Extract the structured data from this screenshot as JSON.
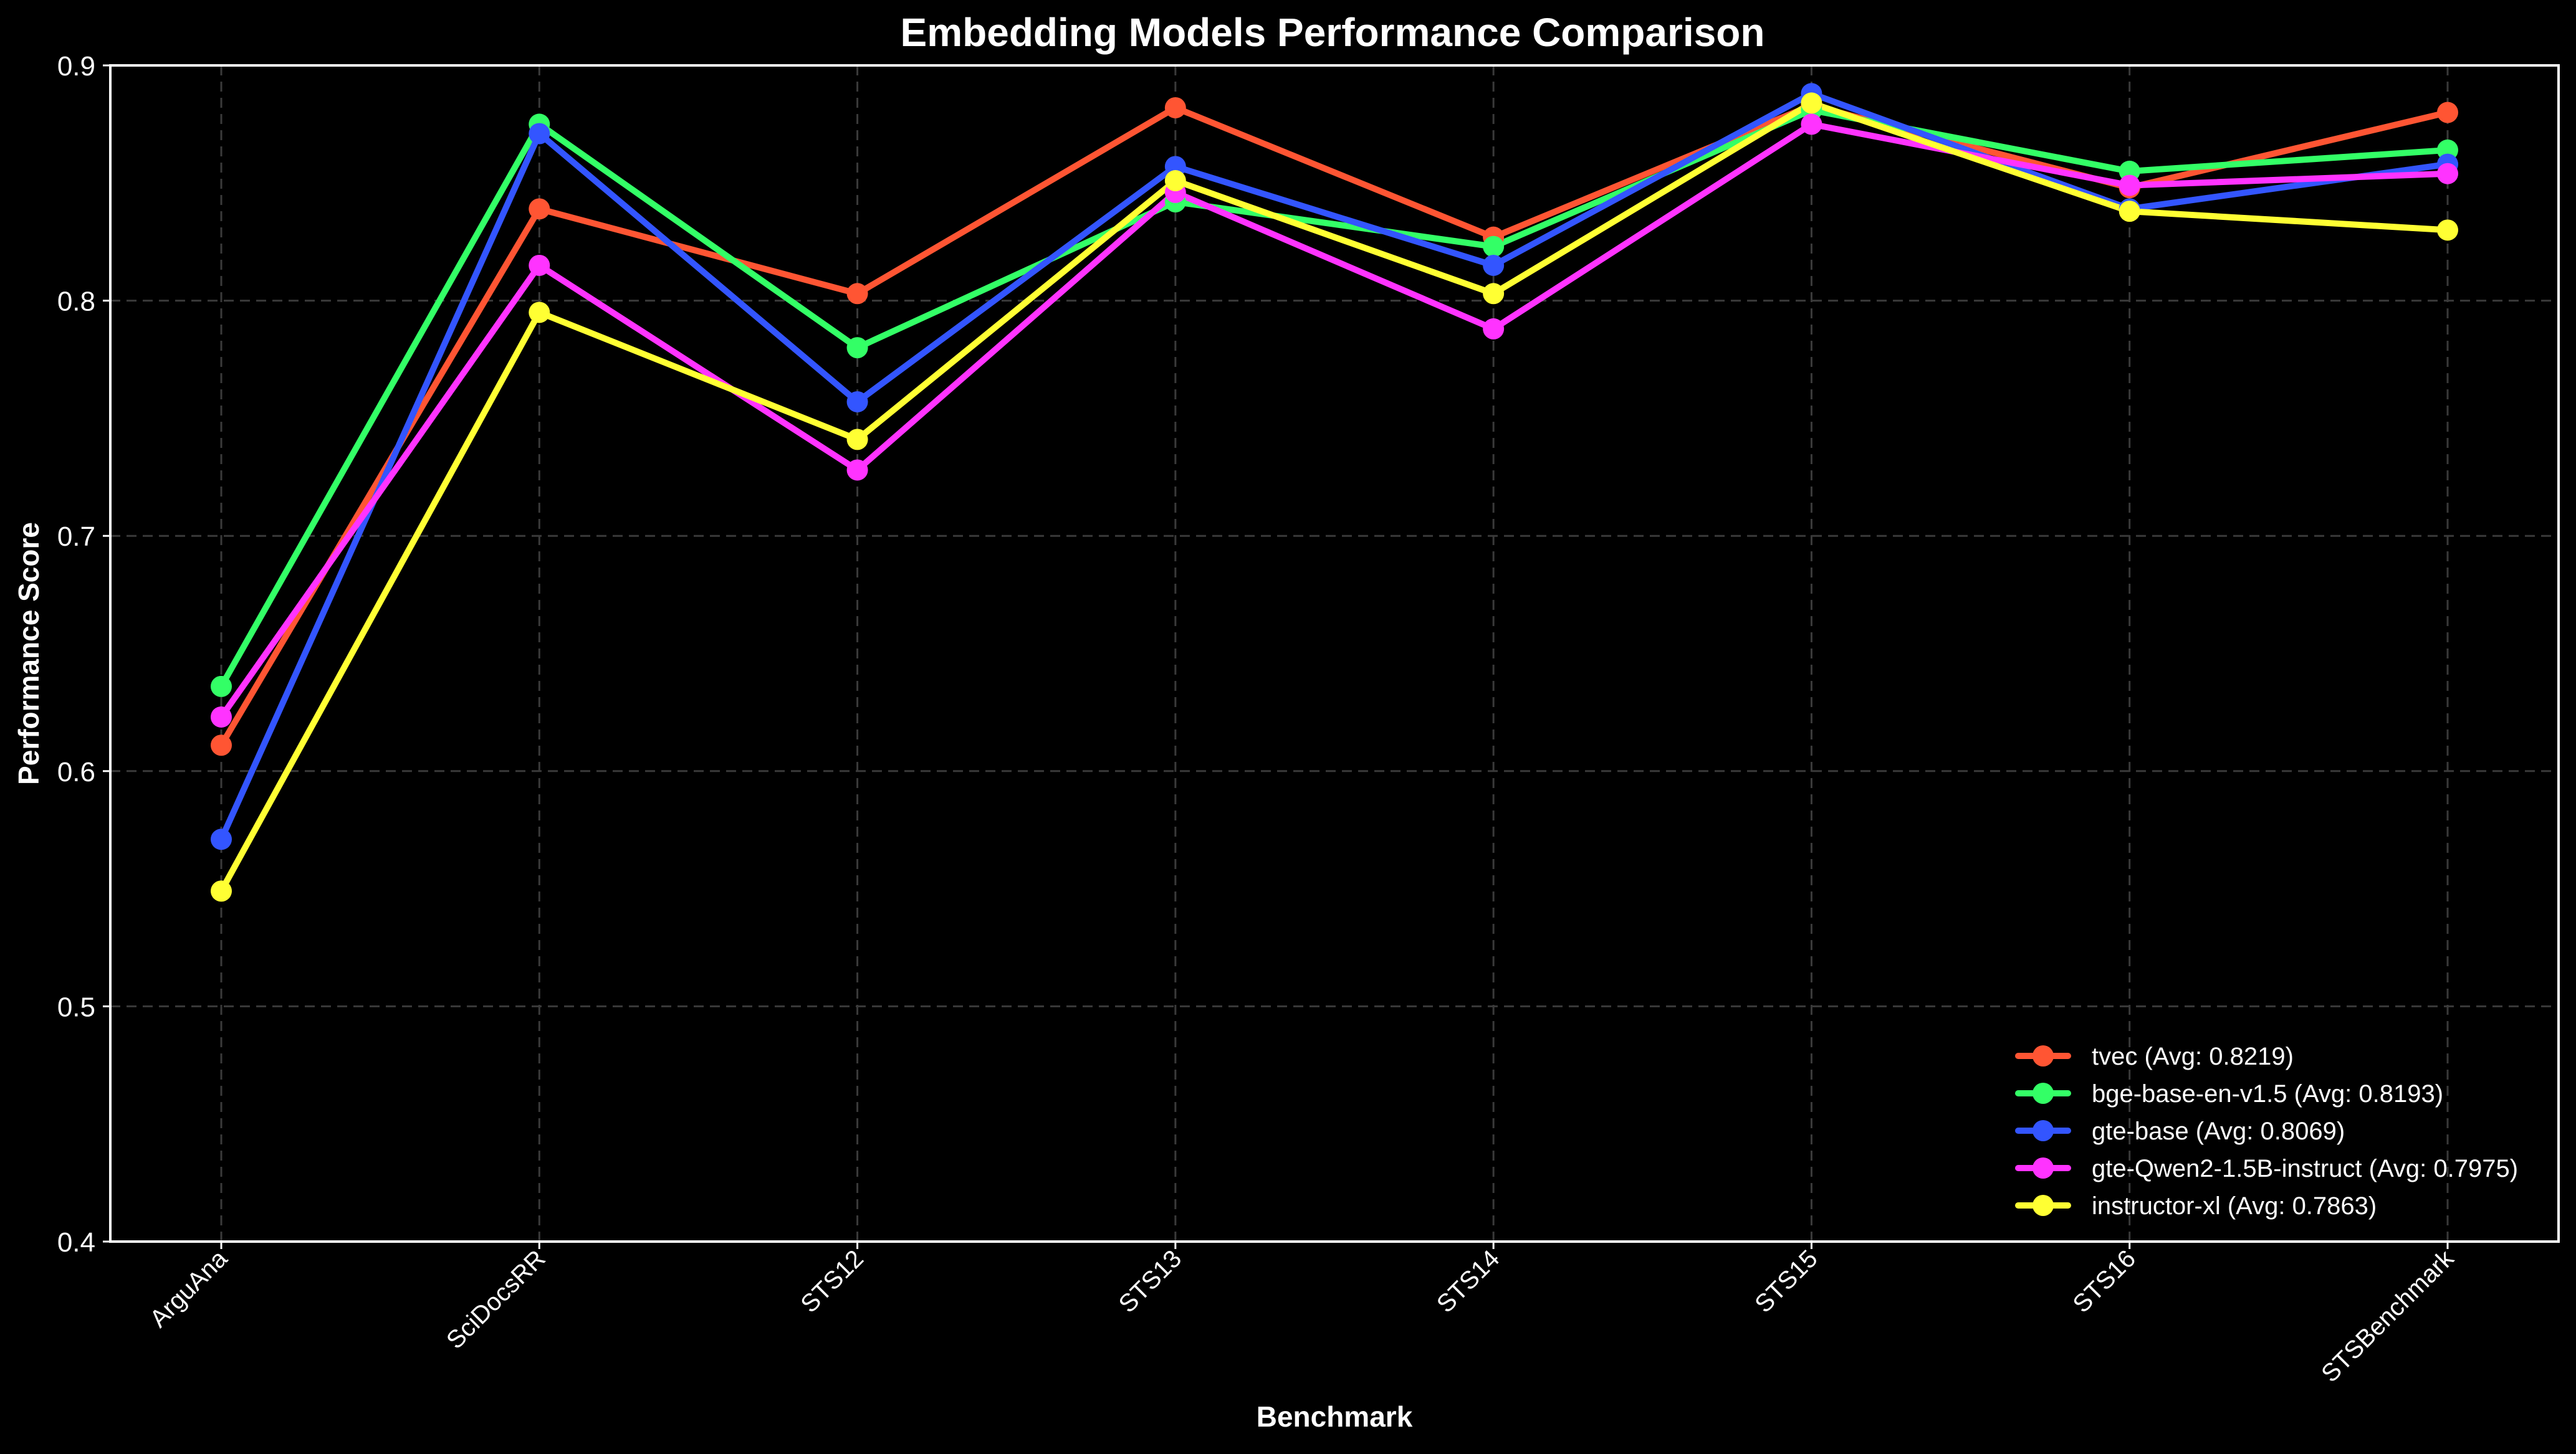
{
  "chart_data": {
    "type": "line",
    "title": "Embedding Models Performance Comparison",
    "xlabel": "Benchmark",
    "ylabel": "Performance Score",
    "ylim": [
      0.4,
      0.9
    ],
    "yticks": [
      "0.4",
      "0.5",
      "0.6",
      "0.7",
      "0.8",
      "0.9"
    ],
    "grid": true,
    "legend_position": "bottom-right",
    "categories": [
      "ArguAna",
      "SciDocsRR",
      "STS12",
      "STS13",
      "STS14",
      "STS15",
      "STS16",
      "STSBenchmark"
    ],
    "series": [
      {
        "name": "tvec (Avg: 0.8219)",
        "color": "#ff5533",
        "values": [
          0.611,
          0.839,
          0.803,
          0.882,
          0.827,
          0.883,
          0.848,
          0.88
        ]
      },
      {
        "name": "bge-base-en-v1.5 (Avg: 0.8193)",
        "color": "#33ff66",
        "values": [
          0.636,
          0.875,
          0.78,
          0.842,
          0.823,
          0.881,
          0.855,
          0.864
        ]
      },
      {
        "name": "gte-base (Avg: 0.8069)",
        "color": "#3355ff",
        "values": [
          0.571,
          0.871,
          0.757,
          0.857,
          0.815,
          0.888,
          0.839,
          0.858
        ]
      },
      {
        "name": "gte-Qwen2-1.5B-instruct (Avg: 0.7975)",
        "color": "#ff33ff",
        "values": [
          0.623,
          0.815,
          0.728,
          0.846,
          0.788,
          0.875,
          0.849,
          0.854
        ]
      },
      {
        "name": "instructor-xl (Avg: 0.7863)",
        "color": "#ffff33",
        "values": [
          0.549,
          0.795,
          0.741,
          0.851,
          0.803,
          0.884,
          0.838,
          0.83
        ]
      }
    ]
  }
}
